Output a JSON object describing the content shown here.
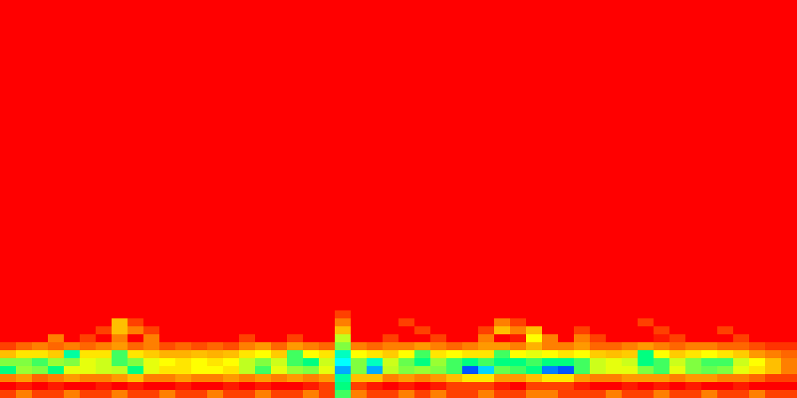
{
  "chart_data": {
    "type": "heatmap",
    "tick_labels": false,
    "xlim": [
      0,
      50
    ],
    "ylim": [
      0,
      500
    ],
    "zlim": [
      0,
      1
    ],
    "x_edges": [
      0,
      1,
      2,
      3,
      4,
      5,
      6,
      7,
      8,
      9,
      10,
      11,
      12,
      13,
      14,
      15,
      16,
      17,
      18,
      19,
      20,
      21,
      22,
      23,
      24,
      25,
      26,
      27,
      28,
      29,
      30,
      31,
      32,
      33,
      34,
      35,
      36,
      37,
      38,
      39,
      40,
      41,
      42,
      43,
      44,
      45,
      46,
      47,
      48,
      49,
      50
    ],
    "y_edges": [
      0,
      10,
      20,
      30,
      40,
      50,
      60,
      70,
      80,
      90,
      100,
      110,
      120,
      500
    ],
    "values": [
      [
        0.85,
        0.8,
        0.85,
        0.85,
        0.8,
        0.85,
        0.85,
        0.8,
        0.85,
        0.85,
        0.8,
        0.85,
        0.85,
        0.8,
        0.85,
        0.85,
        0.8,
        0.85,
        0.85,
        0.8,
        0.85,
        0.55,
        0.8,
        0.85,
        0.85,
        0.8,
        0.85,
        0.8,
        0.85,
        0.85,
        0.8,
        0.85,
        0.85,
        0.8,
        0.8,
        0.85,
        0.85,
        0.85,
        0.8,
        0.85,
        0.85,
        0.8,
        0.85,
        0.85,
        0.8,
        0.85,
        0.85,
        0.8,
        0.85,
        0.85
      ],
      [
        0.9,
        0.88,
        0.9,
        0.88,
        0.9,
        0.9,
        0.88,
        0.9,
        0.88,
        0.9,
        0.9,
        0.88,
        0.9,
        0.9,
        0.88,
        0.9,
        0.88,
        0.9,
        0.9,
        0.88,
        0.85,
        0.5,
        0.85,
        0.88,
        0.9,
        0.88,
        0.9,
        0.88,
        0.85,
        0.85,
        0.85,
        0.88,
        0.9,
        0.85,
        0.85,
        0.85,
        0.88,
        0.9,
        0.9,
        0.88,
        0.9,
        0.88,
        0.9,
        0.88,
        0.9,
        0.9,
        0.88,
        0.9,
        0.9,
        0.9
      ],
      [
        0.8,
        0.78,
        0.82,
        0.8,
        0.78,
        0.8,
        0.8,
        0.78,
        0.75,
        0.8,
        0.8,
        0.78,
        0.8,
        0.8,
        0.78,
        0.8,
        0.78,
        0.8,
        0.78,
        0.8,
        0.78,
        0.45,
        0.75,
        0.75,
        0.8,
        0.78,
        0.8,
        0.78,
        0.75,
        0.72,
        0.72,
        0.78,
        0.78,
        0.75,
        0.72,
        0.72,
        0.78,
        0.8,
        0.8,
        0.78,
        0.78,
        0.78,
        0.8,
        0.78,
        0.78,
        0.8,
        0.8,
        0.82,
        0.85,
        0.85
      ],
      [
        0.5,
        0.62,
        0.6,
        0.5,
        0.68,
        0.68,
        0.66,
        0.65,
        0.5,
        0.68,
        0.72,
        0.72,
        0.7,
        0.7,
        0.72,
        0.65,
        0.55,
        0.68,
        0.62,
        0.6,
        0.68,
        0.2,
        0.6,
        0.2,
        0.65,
        0.6,
        0.62,
        0.6,
        0.55,
        0.1,
        0.25,
        0.58,
        0.55,
        0.5,
        0.15,
        0.1,
        0.55,
        0.66,
        0.68,
        0.68,
        0.6,
        0.55,
        0.68,
        0.6,
        0.58,
        0.6,
        0.68,
        0.72,
        0.75,
        0.8
      ],
      [
        0.6,
        0.6,
        0.55,
        0.62,
        0.6,
        0.68,
        0.66,
        0.55,
        0.6,
        0.68,
        0.7,
        0.72,
        0.7,
        0.72,
        0.7,
        0.65,
        0.6,
        0.66,
        0.55,
        0.5,
        0.66,
        0.3,
        0.6,
        0.4,
        0.66,
        0.58,
        0.5,
        0.62,
        0.55,
        0.5,
        0.55,
        0.5,
        0.5,
        0.55,
        0.5,
        0.5,
        0.55,
        0.66,
        0.68,
        0.66,
        0.5,
        0.55,
        0.66,
        0.6,
        0.55,
        0.55,
        0.66,
        0.7,
        0.75,
        0.8
      ],
      [
        0.75,
        0.72,
        0.72,
        0.74,
        0.45,
        0.72,
        0.72,
        0.55,
        0.72,
        0.74,
        0.76,
        0.76,
        0.75,
        0.76,
        0.75,
        0.72,
        0.7,
        0.74,
        0.55,
        0.7,
        0.72,
        0.4,
        0.7,
        0.72,
        0.74,
        0.7,
        0.55,
        0.72,
        0.7,
        0.72,
        0.72,
        0.55,
        0.7,
        0.68,
        0.7,
        0.72,
        0.7,
        0.74,
        0.75,
        0.74,
        0.5,
        0.7,
        0.74,
        0.72,
        0.7,
        0.72,
        0.74,
        0.78,
        0.8,
        0.82
      ],
      [
        0.85,
        0.82,
        0.8,
        0.82,
        0.8,
        0.82,
        0.8,
        0.78,
        0.82,
        0.8,
        0.84,
        0.82,
        0.84,
        0.82,
        0.84,
        0.8,
        0.78,
        0.82,
        0.78,
        0.8,
        0.82,
        0.6,
        0.8,
        0.82,
        0.8,
        0.8,
        0.78,
        0.8,
        0.82,
        0.8,
        0.78,
        0.78,
        0.8,
        0.76,
        0.8,
        0.8,
        0.78,
        0.82,
        0.82,
        0.8,
        0.78,
        0.8,
        0.82,
        0.8,
        0.8,
        0.82,
        0.82,
        0.84,
        0.86,
        0.86
      ],
      [
        0.9,
        0.9,
        0.9,
        0.8,
        0.9,
        0.85,
        0.9,
        0.8,
        0.9,
        0.8,
        0.92,
        0.9,
        0.92,
        0.9,
        0.92,
        0.85,
        0.9,
        0.9,
        0.85,
        0.9,
        0.9,
        0.65,
        0.9,
        0.9,
        0.85,
        0.9,
        0.9,
        0.85,
        0.9,
        0.9,
        0.8,
        0.9,
        0.88,
        0.7,
        0.8,
        0.9,
        0.8,
        0.85,
        0.9,
        0.9,
        0.9,
        0.88,
        0.85,
        0.9,
        0.9,
        0.9,
        0.85,
        0.9,
        0.9,
        0.9
      ],
      [
        0.92,
        0.92,
        0.95,
        0.92,
        0.95,
        0.92,
        0.85,
        0.75,
        0.8,
        0.85,
        0.95,
        0.92,
        0.95,
        0.95,
        0.92,
        0.95,
        0.92,
        0.95,
        0.92,
        0.95,
        0.92,
        0.75,
        0.92,
        0.95,
        0.92,
        0.9,
        0.85,
        0.92,
        0.92,
        0.92,
        0.85,
        0.75,
        0.8,
        0.75,
        0.9,
        0.92,
        0.85,
        0.92,
        0.95,
        0.92,
        0.9,
        0.85,
        0.92,
        0.95,
        0.92,
        0.85,
        0.92,
        0.95,
        0.95,
        0.95
      ],
      [
        0.95,
        0.95,
        0.97,
        0.95,
        0.97,
        0.95,
        0.92,
        0.75,
        0.85,
        0.92,
        0.97,
        0.97,
        0.97,
        0.97,
        0.95,
        0.97,
        0.95,
        0.97,
        0.97,
        0.97,
        0.95,
        0.8,
        0.95,
        0.97,
        0.95,
        0.85,
        0.92,
        0.95,
        0.95,
        0.95,
        0.92,
        0.8,
        0.85,
        0.92,
        0.95,
        0.97,
        0.95,
        0.97,
        0.97,
        0.95,
        0.85,
        0.95,
        0.97,
        0.97,
        0.95,
        0.95,
        0.97,
        0.97,
        0.97,
        0.97
      ],
      [
        1,
        1,
        1,
        1,
        1,
        1,
        1,
        0.9,
        1,
        1,
        1,
        1,
        1,
        1,
        1,
        1,
        1,
        1,
        1,
        1,
        1,
        0.85,
        1,
        1,
        1,
        0.9,
        1,
        1,
        1,
        1,
        1,
        0.9,
        1,
        1,
        1,
        1,
        1,
        1,
        1,
        1,
        0.9,
        1,
        1,
        1,
        1,
        1,
        1,
        1,
        1,
        1
      ],
      [
        1,
        1,
        1,
        1,
        1,
        1,
        1,
        1,
        1,
        1,
        1,
        1,
        1,
        1,
        1,
        1,
        1,
        1,
        1,
        1,
        1,
        0.9,
        1,
        1,
        1,
        1,
        1,
        1,
        1,
        1,
        1,
        1,
        1,
        1,
        1,
        1,
        1,
        1,
        1,
        1,
        1,
        1,
        1,
        1,
        1,
        1,
        1,
        1,
        1,
        1
      ],
      [
        1,
        1,
        1,
        1,
        1,
        1,
        1,
        1,
        1,
        1,
        1,
        1,
        1,
        1,
        1,
        1,
        1,
        1,
        1,
        1,
        1,
        1,
        1,
        1,
        1,
        1,
        1,
        1,
        1,
        1,
        1,
        1,
        1,
        1,
        1,
        1,
        1,
        1,
        1,
        1,
        1,
        1,
        1,
        1,
        1,
        1,
        1,
        1,
        1,
        1
      ]
    ]
  }
}
